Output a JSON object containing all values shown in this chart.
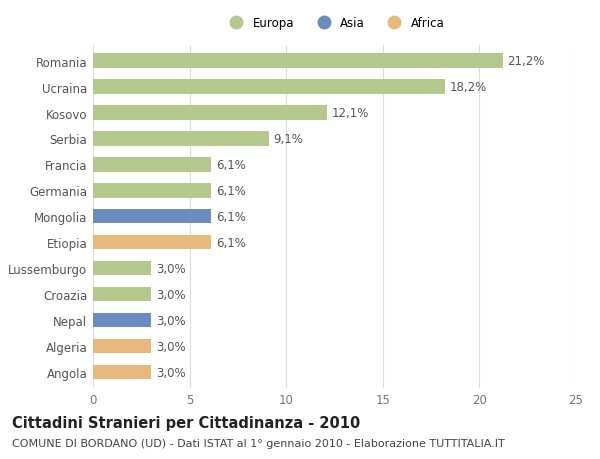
{
  "countries": [
    "Romania",
    "Ucraina",
    "Kosovo",
    "Serbia",
    "Francia",
    "Germania",
    "Mongolia",
    "Etiopia",
    "Lussemburgo",
    "Croazia",
    "Nepal",
    "Algeria",
    "Angola"
  ],
  "values": [
    21.2,
    18.2,
    12.1,
    9.1,
    6.1,
    6.1,
    6.1,
    6.1,
    3.0,
    3.0,
    3.0,
    3.0,
    3.0
  ],
  "labels": [
    "21,2%",
    "18,2%",
    "12,1%",
    "9,1%",
    "6,1%",
    "6,1%",
    "6,1%",
    "6,1%",
    "3,0%",
    "3,0%",
    "3,0%",
    "3,0%",
    "3,0%"
  ],
  "continents": [
    "Europa",
    "Europa",
    "Europa",
    "Europa",
    "Europa",
    "Europa",
    "Asia",
    "Africa",
    "Europa",
    "Europa",
    "Asia",
    "Africa",
    "Africa"
  ],
  "colors": {
    "Europa": "#b5c98e",
    "Asia": "#6b8cbf",
    "Africa": "#e8b97a"
  },
  "xlim": [
    0,
    25
  ],
  "xticks": [
    0,
    5,
    10,
    15,
    20,
    25
  ],
  "title": "Cittadini Stranieri per Cittadinanza - 2010",
  "subtitle": "COMUNE DI BORDANO (UD) - Dati ISTAT al 1° gennaio 2010 - Elaborazione TUTTITALIA.IT",
  "background_color": "#ffffff",
  "grid_color": "#dddddd",
  "bar_height": 0.55,
  "label_fontsize": 8.5,
  "tick_fontsize": 8.5,
  "title_fontsize": 10.5,
  "subtitle_fontsize": 8
}
